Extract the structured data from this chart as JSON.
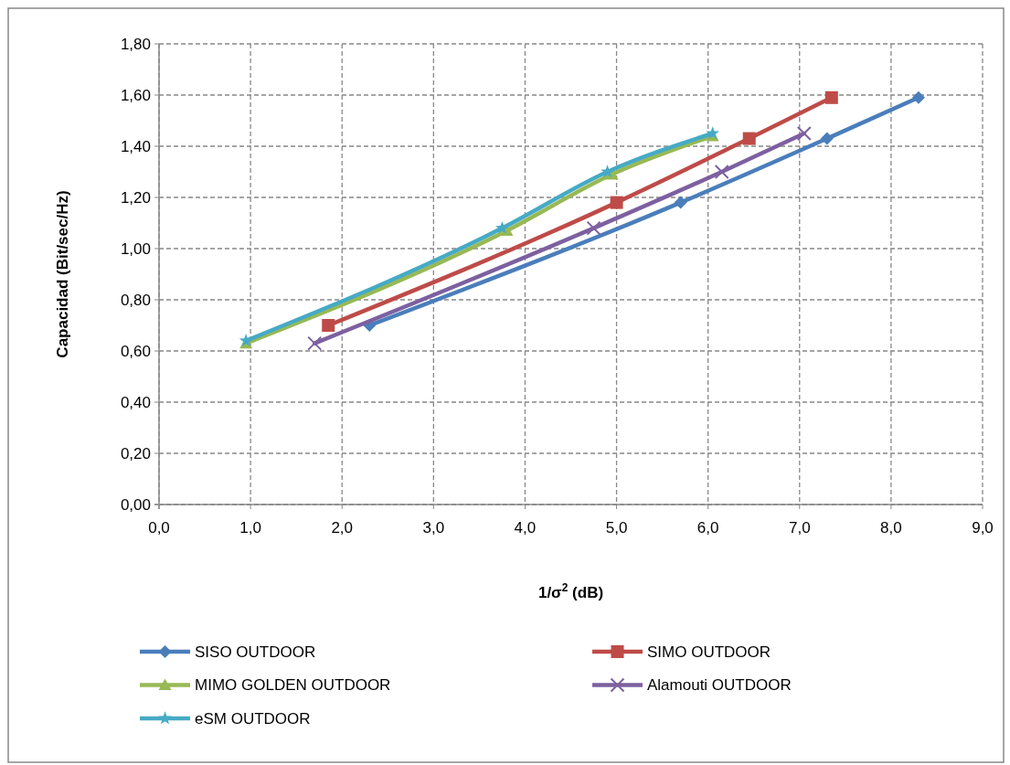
{
  "chart_data": {
    "type": "line",
    "xlabel": "1/σ$^{2}$ (dB)",
    "ylabel": "Capacidad (Bit/sec/Hz)",
    "xlim": [
      0,
      9
    ],
    "ylim": [
      0,
      1.8
    ],
    "xticks": [
      {
        "value": 0,
        "label": "0,0"
      },
      {
        "value": 1,
        "label": "1,0"
      },
      {
        "value": 2,
        "label": "2,0"
      },
      {
        "value": 3,
        "label": "3,0"
      },
      {
        "value": 4,
        "label": "4,0"
      },
      {
        "value": 5,
        "label": "5,0"
      },
      {
        "value": 6,
        "label": "6,0"
      },
      {
        "value": 7,
        "label": "7,0"
      },
      {
        "value": 8,
        "label": "8,0"
      },
      {
        "value": 9,
        "label": "9,0"
      }
    ],
    "yticks": [
      {
        "value": 0,
        "label": "0,00"
      },
      {
        "value": 0.2,
        "label": "0,20"
      },
      {
        "value": 0.4,
        "label": "0,40"
      },
      {
        "value": 0.6,
        "label": "0,60"
      },
      {
        "value": 0.8,
        "label": "0,80"
      },
      {
        "value": 1,
        "label": "1,00"
      },
      {
        "value": 1.2,
        "label": "1,20"
      },
      {
        "value": 1.4,
        "label": "1,40"
      },
      {
        "value": 1.6,
        "label": "1,60"
      },
      {
        "value": 1.8,
        "label": "1,80"
      }
    ],
    "grid": true,
    "legend": "bottom",
    "line_style": "solid",
    "series": [
      {
        "name": "SISO OUTDOOR",
        "color": "#4a7ebb",
        "marker": "diamond",
        "x": [
          2.3,
          5.7,
          7.3,
          8.3
        ],
        "values": [
          0.7,
          1.18,
          1.43,
          1.59
        ]
      },
      {
        "name": "SIMO OUTDOOR",
        "color": "#be4b48",
        "marker": "square",
        "x": [
          1.85,
          5.0,
          6.45,
          7.35
        ],
        "values": [
          0.7,
          1.18,
          1.43,
          1.59
        ]
      },
      {
        "name": "MIMO GOLDEN OUTDOOR",
        "color": "#98b954",
        "marker": "triangle",
        "x": [
          0.95,
          3.8,
          4.95,
          6.05
        ],
        "values": [
          0.63,
          1.07,
          1.29,
          1.44
        ]
      },
      {
        "name": "Alamouti OUTDOOR",
        "color": "#7d60a0",
        "marker": "cross",
        "x": [
          1.7,
          4.75,
          6.15,
          7.05
        ],
        "values": [
          0.63,
          1.08,
          1.3,
          1.45
        ]
      },
      {
        "name": "eSM OUTDOOR",
        "color": "#46aac5",
        "marker": "star",
        "x": [
          0.95,
          3.75,
          4.9,
          6.05
        ],
        "values": [
          0.64,
          1.08,
          1.3,
          1.45
        ]
      }
    ]
  }
}
